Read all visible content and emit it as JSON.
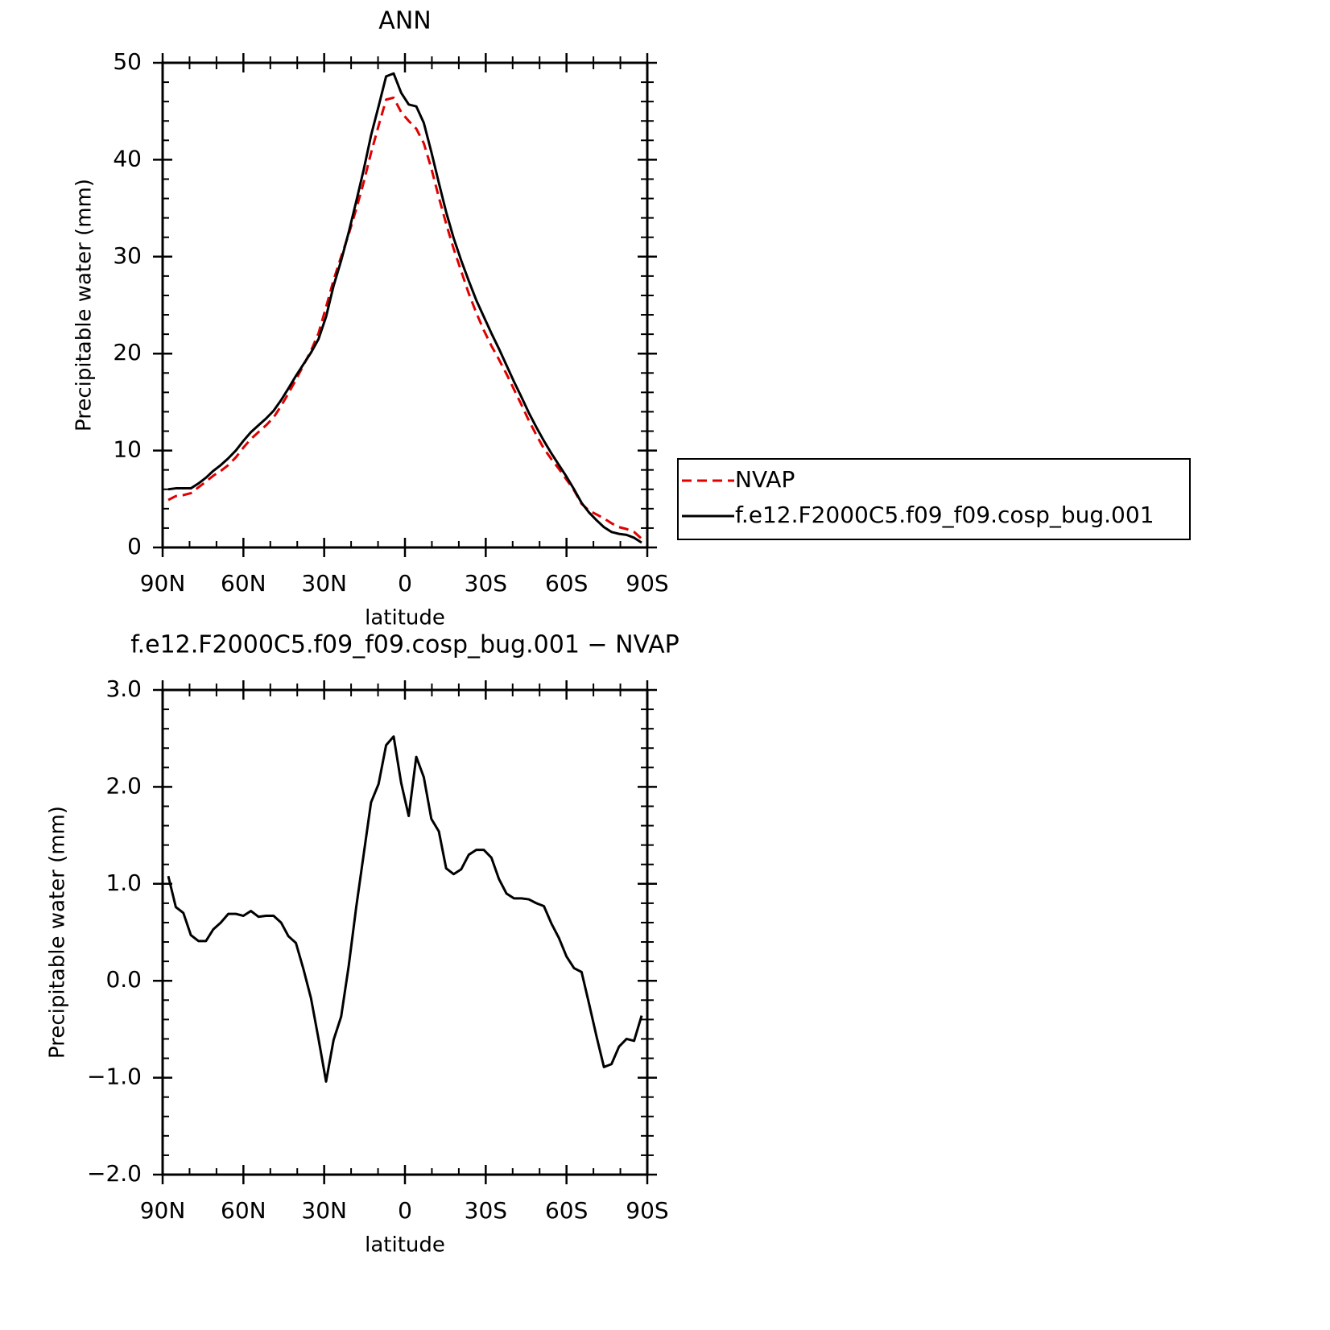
{
  "chart_data": [
    {
      "type": "line",
      "title": "ANN",
      "xlabel": "latitude",
      "ylabel": "Precipitable water (mm)",
      "x": [
        87.9,
        85.1,
        82.3,
        79.5,
        76.7,
        73.9,
        71.2,
        68.4,
        65.6,
        62.8,
        60.0,
        57.2,
        54.4,
        51.6,
        48.8,
        46.0,
        43.3,
        40.5,
        37.7,
        34.9,
        32.1,
        29.3,
        26.5,
        23.7,
        20.9,
        18.1,
        15.3,
        12.6,
        9.8,
        7.0,
        4.2,
        1.4,
        -1.4,
        -4.2,
        -7.0,
        -9.8,
        -12.6,
        -15.3,
        -18.1,
        -20.9,
        -23.7,
        -26.5,
        -29.3,
        -32.1,
        -34.9,
        -37.7,
        -40.5,
        -43.3,
        -46.0,
        -48.8,
        -51.6,
        -54.4,
        -57.2,
        -60.0,
        -62.8,
        -65.6,
        -68.4,
        -71.2,
        -73.9,
        -76.7,
        -79.5,
        -82.3,
        -85.1,
        -87.9
      ],
      "series": [
        {
          "name": "NVAP",
          "color": "#e00000",
          "style": "dashed",
          "values": [
            4.9,
            5.3,
            5.4,
            5.6,
            6.2,
            6.8,
            7.4,
            7.9,
            8.5,
            9.3,
            10.3,
            11.2,
            11.9,
            12.6,
            13.4,
            14.6,
            15.9,
            17.3,
            18.8,
            20.3,
            22.1,
            24.8,
            27.6,
            30.0,
            32.3,
            34.9,
            37.7,
            40.7,
            43.5,
            46.2,
            46.4,
            44.9,
            44.0,
            43.2,
            41.7,
            39.1,
            36.1,
            33.4,
            30.8,
            28.5,
            26.2,
            24.2,
            22.4,
            20.8,
            19.4,
            17.9,
            16.3,
            14.7,
            13.1,
            11.6,
            10.2,
            9.1,
            8.1,
            7.0,
            5.9,
            4.5,
            3.8,
            3.4,
            3.0,
            2.5,
            2.1,
            1.9,
            1.6,
            0.9
          ]
        },
        {
          "name": "f.e12.F2000C5.f09_f09.cosp_bug.001",
          "color": "#000000",
          "style": "solid",
          "values": [
            6.0,
            6.1,
            6.1,
            6.1,
            6.6,
            7.2,
            7.9,
            8.5,
            9.2,
            10.0,
            11.0,
            11.9,
            12.6,
            13.3,
            14.1,
            15.2,
            16.4,
            17.7,
            18.9,
            20.1,
            21.5,
            23.8,
            27.0,
            29.6,
            32.5,
            35.7,
            39.0,
            42.5,
            45.5,
            48.6,
            48.9,
            46.9,
            45.7,
            45.5,
            43.8,
            40.8,
            37.6,
            34.6,
            31.9,
            29.6,
            27.5,
            25.5,
            23.8,
            22.1,
            20.5,
            18.8,
            17.1,
            15.5,
            13.9,
            12.4,
            11.0,
            9.7,
            8.5,
            7.3,
            6.0,
            4.6,
            3.6,
            2.8,
            2.1,
            1.6,
            1.4,
            1.3,
            1.0,
            0.5
          ]
        }
      ],
      "xlim": [
        90,
        -90
      ],
      "xticks": [
        {
          "value": 90,
          "label": "90N"
        },
        {
          "value": 60,
          "label": "60N"
        },
        {
          "value": 30,
          "label": "30N"
        },
        0,
        {
          "value": -30,
          "label": "30S"
        },
        {
          "value": -60,
          "label": "60S"
        },
        {
          "value": -90,
          "label": "90S"
        }
      ],
      "ylim": [
        0,
        50
      ],
      "yticks": [
        0,
        10,
        20,
        30,
        40,
        50
      ],
      "legend": "right"
    },
    {
      "type": "line",
      "title": "f.e12.F2000C5.f09_f09.cosp_bug.001 − NVAP",
      "xlabel": "latitude",
      "ylabel": "Precipitable water (mm)",
      "x": [
        87.9,
        85.1,
        82.3,
        79.5,
        76.7,
        73.9,
        71.2,
        68.4,
        65.6,
        62.8,
        60.0,
        57.2,
        54.4,
        51.6,
        48.8,
        46.0,
        43.3,
        40.5,
        37.7,
        34.9,
        32.1,
        29.3,
        26.5,
        23.7,
        20.9,
        18.1,
        15.3,
        12.6,
        9.8,
        7.0,
        4.2,
        1.4,
        -1.4,
        -4.2,
        -7.0,
        -9.8,
        -12.6,
        -15.3,
        -18.1,
        -20.9,
        -23.7,
        -26.5,
        -29.3,
        -32.1,
        -34.9,
        -37.7,
        -40.5,
        -43.3,
        -46.0,
        -48.8,
        -51.6,
        -54.4,
        -57.2,
        -60.0,
        -62.8,
        -65.6,
        -68.4,
        -71.2,
        -73.9,
        -76.7,
        -79.5,
        -82.3,
        -85.1,
        -87.9
      ],
      "values": [
        1.08,
        0.76,
        0.7,
        0.47,
        0.41,
        0.41,
        0.53,
        0.6,
        0.69,
        0.69,
        0.67,
        0.72,
        0.66,
        0.67,
        0.67,
        0.6,
        0.46,
        0.39,
        0.12,
        -0.18,
        -0.6,
        -1.04,
        -0.61,
        -0.37,
        0.15,
        0.76,
        1.31,
        1.84,
        2.03,
        2.43,
        2.52,
        2.04,
        1.7,
        2.31,
        2.1,
        1.67,
        1.54,
        1.16,
        1.1,
        1.15,
        1.3,
        1.35,
        1.35,
        1.27,
        1.05,
        0.9,
        0.85,
        0.85,
        0.84,
        0.8,
        0.77,
        0.59,
        0.44,
        0.25,
        0.13,
        0.09,
        -0.24,
        -0.58,
        -0.89,
        -0.86,
        -0.68,
        -0.6,
        -0.62,
        -0.36
      ],
      "color": "#000000",
      "style": "solid",
      "xlim": [
        90,
        -90
      ],
      "xticks": [
        {
          "value": 90,
          "label": "90N"
        },
        {
          "value": 60,
          "label": "60N"
        },
        {
          "value": 30,
          "label": "30N"
        },
        0,
        {
          "value": -30,
          "label": "30S"
        },
        {
          "value": -60,
          "label": "60S"
        },
        {
          "value": -90,
          "label": "90S"
        }
      ],
      "ylim": [
        -2,
        3
      ],
      "yticks": [
        {
          "value": -2,
          "label": "−2.0"
        },
        {
          "value": -1,
          "label": "−1.0"
        },
        {
          "value": 0,
          "label": "0.0"
        },
        {
          "value": 1,
          "label": "1.0"
        },
        {
          "value": 2,
          "label": "2.0"
        },
        {
          "value": 3,
          "label": "3.0"
        }
      ]
    }
  ]
}
